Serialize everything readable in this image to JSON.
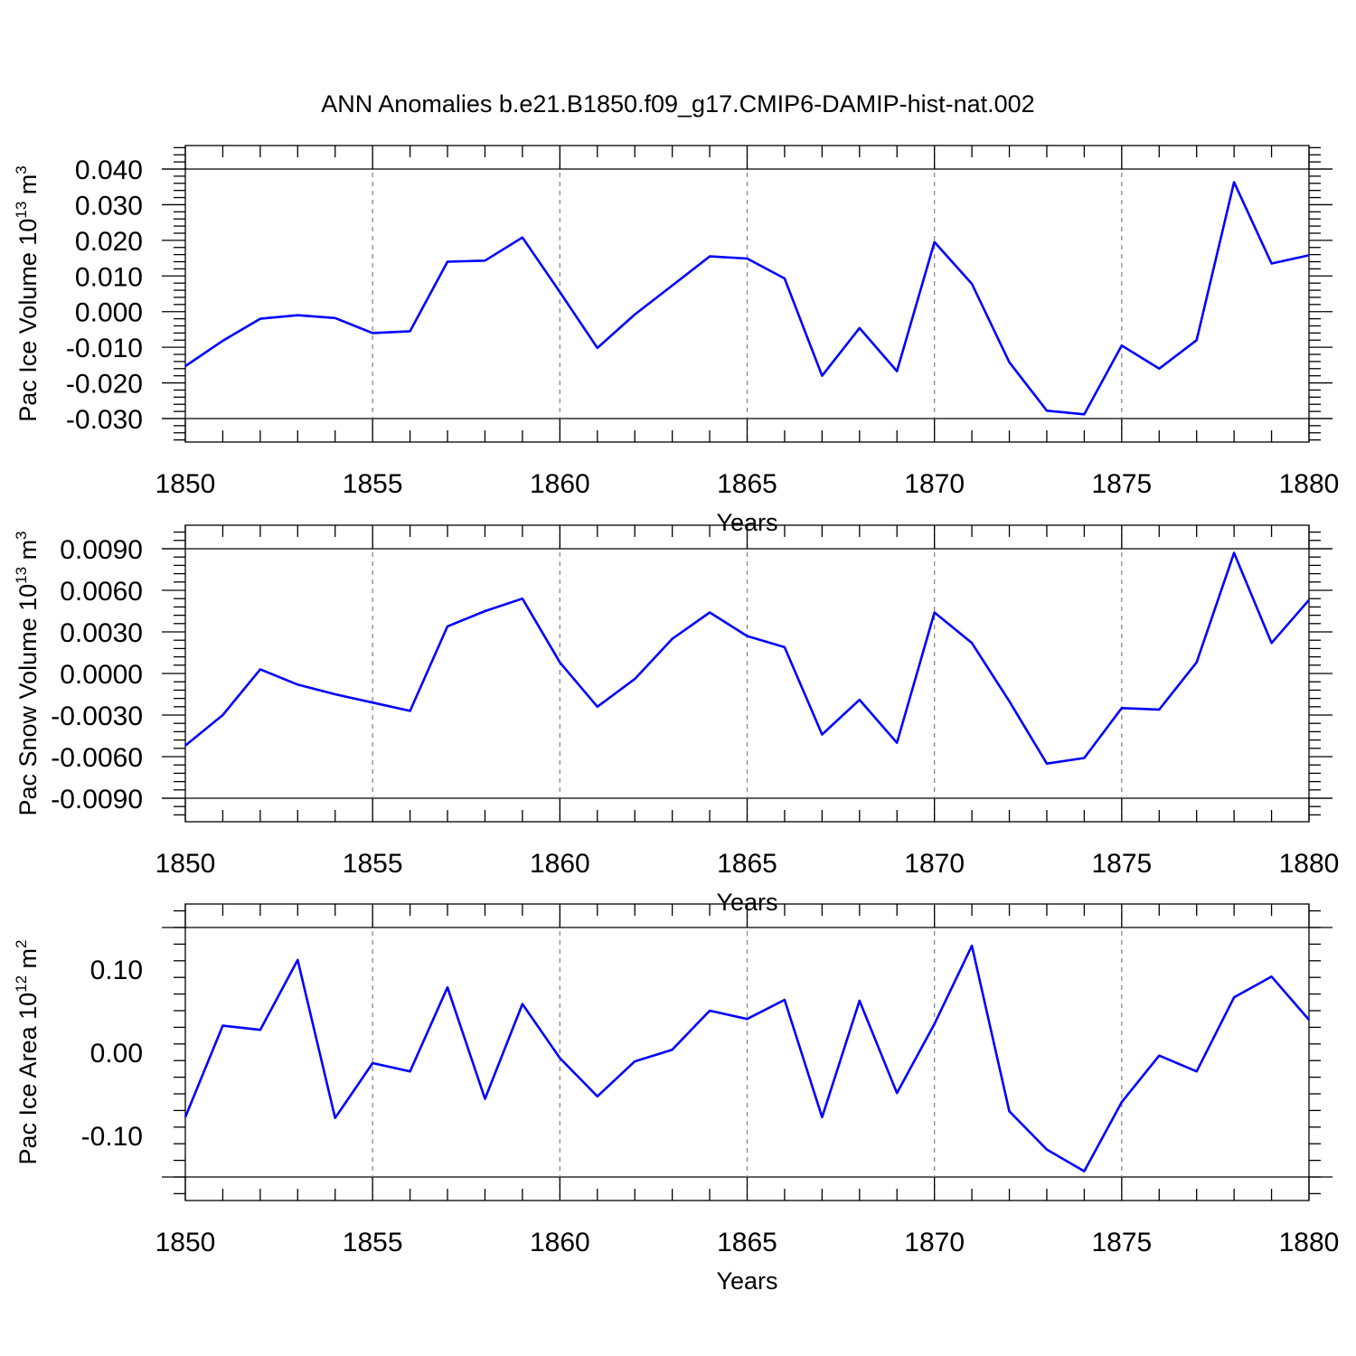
{
  "chart_data": [
    {
      "type": "line",
      "title": "ANN Anomalies b.e21.B1850.f09_g17.CMIP6-DAMIP-hist-nat.002",
      "xlabel": "Years",
      "ylabel": "Pac Ice Volume 10^13 m^3",
      "ylabel_parts": {
        "base": "Pac Ice Volume 10",
        "exp1": "13",
        "unit": " m",
        "exp2": "3"
      },
      "xlim": [
        1850,
        1880
      ],
      "ylim": [
        -0.03,
        0.04
      ],
      "x_ticks": [
        1850,
        1855,
        1860,
        1865,
        1870,
        1875,
        1880
      ],
      "y_ticks": [
        -0.03,
        -0.02,
        -0.01,
        0.0,
        0.01,
        0.02,
        0.03,
        0.04
      ],
      "y_tick_labels": [
        "-0.030",
        "-0.020",
        "-0.010",
        "0.000",
        "0.010",
        "0.020",
        "0.030",
        "0.040"
      ],
      "grid": "vertical dashed at major x ticks",
      "series": [
        {
          "color": "#0000ff",
          "x": [
            1850,
            1851,
            1852,
            1853,
            1854,
            1855,
            1856,
            1857,
            1858,
            1859,
            1860,
            1861,
            1862,
            1863,
            1864,
            1865,
            1866,
            1867,
            1868,
            1869,
            1870,
            1871,
            1872,
            1873,
            1874,
            1875,
            1876,
            1877,
            1878,
            1879,
            1880
          ],
          "values": [
            -0.0153,
            -0.0082,
            -0.002,
            -0.001,
            -0.0018,
            -0.006,
            -0.0055,
            0.014,
            0.0143,
            0.0208,
            0.0055,
            -0.0102,
            -0.0008,
            0.0073,
            0.0155,
            0.0149,
            0.0093,
            -0.018,
            -0.0046,
            -0.0167,
            0.0195,
            0.0078,
            -0.0142,
            -0.0278,
            -0.0288,
            -0.0095,
            -0.016,
            -0.008,
            0.0363,
            0.0135,
            0.0158
          ]
        }
      ]
    },
    {
      "type": "line",
      "xlabel": "Years",
      "ylabel": "Pac Snow Volume 10^13 m^3",
      "ylabel_parts": {
        "base": "Pac Snow Volume 10",
        "exp1": "13",
        "unit": " m",
        "exp2": "3"
      },
      "xlim": [
        1850,
        1880
      ],
      "ylim": [
        -0.009,
        0.009
      ],
      "x_ticks": [
        1850,
        1855,
        1860,
        1865,
        1870,
        1875,
        1880
      ],
      "y_ticks": [
        -0.009,
        -0.006,
        -0.003,
        0.0,
        0.003,
        0.006,
        0.009
      ],
      "y_tick_labels": [
        "-0.0090",
        "-0.0060",
        "-0.0030",
        "0.0000",
        "0.0030",
        "0.0060",
        "0.0090"
      ],
      "grid": "vertical dashed at major x ticks",
      "series": [
        {
          "color": "#0000ff",
          "x": [
            1850,
            1851,
            1852,
            1853,
            1854,
            1855,
            1856,
            1857,
            1858,
            1859,
            1860,
            1861,
            1862,
            1863,
            1864,
            1865,
            1866,
            1867,
            1868,
            1869,
            1870,
            1871,
            1872,
            1873,
            1874,
            1875,
            1876,
            1877,
            1878,
            1879,
            1880
          ],
          "values": [
            -0.0052,
            -0.003,
            0.0003,
            -0.0008,
            -0.0015,
            -0.0021,
            -0.0027,
            0.0034,
            0.0045,
            0.0054,
            0.0008,
            -0.0024,
            -0.0004,
            0.0025,
            0.0044,
            0.0027,
            0.0019,
            -0.0044,
            -0.0019,
            -0.005,
            0.0044,
            0.0022,
            -0.002,
            -0.0065,
            -0.0061,
            -0.0025,
            -0.0026,
            0.0008,
            0.0087,
            0.0022,
            0.0053
          ]
        }
      ]
    },
    {
      "type": "line",
      "xlabel": "Years",
      "ylabel": "Pac Ice Area 10^12 m^2",
      "ylabel_parts": {
        "base": "Pac Ice Area 10",
        "exp1": "12",
        "unit": " m",
        "exp2": "2"
      },
      "xlim": [
        1850,
        1880
      ],
      "ylim": [
        -0.15,
        0.15
      ],
      "x_ticks": [
        1850,
        1855,
        1860,
        1865,
        1870,
        1875,
        1880
      ],
      "y_ticks": [
        -0.1,
        0.0,
        0.1
      ],
      "y_tick_labels": [
        "-0.10",
        "0.00",
        "0.10"
      ],
      "grid": "vertical dashed at major x ticks",
      "series": [
        {
          "color": "#0000ff",
          "x": [
            1850,
            1851,
            1852,
            1853,
            1854,
            1855,
            1856,
            1857,
            1858,
            1859,
            1860,
            1861,
            1862,
            1863,
            1864,
            1865,
            1866,
            1867,
            1868,
            1869,
            1870,
            1871,
            1872,
            1873,
            1874,
            1875,
            1876,
            1877,
            1878,
            1879,
            1880
          ],
          "values": [
            -0.078,
            0.032,
            0.027,
            0.111,
            -0.079,
            -0.013,
            -0.023,
            0.078,
            -0.056,
            0.058,
            -0.007,
            -0.053,
            -0.011,
            0.003,
            0.05,
            0.04,
            0.063,
            -0.078,
            0.062,
            -0.049,
            0.034,
            0.128,
            -0.071,
            -0.117,
            -0.143,
            -0.06,
            -0.004,
            -0.023,
            0.066,
            0.091,
            0.039
          ]
        }
      ]
    }
  ]
}
